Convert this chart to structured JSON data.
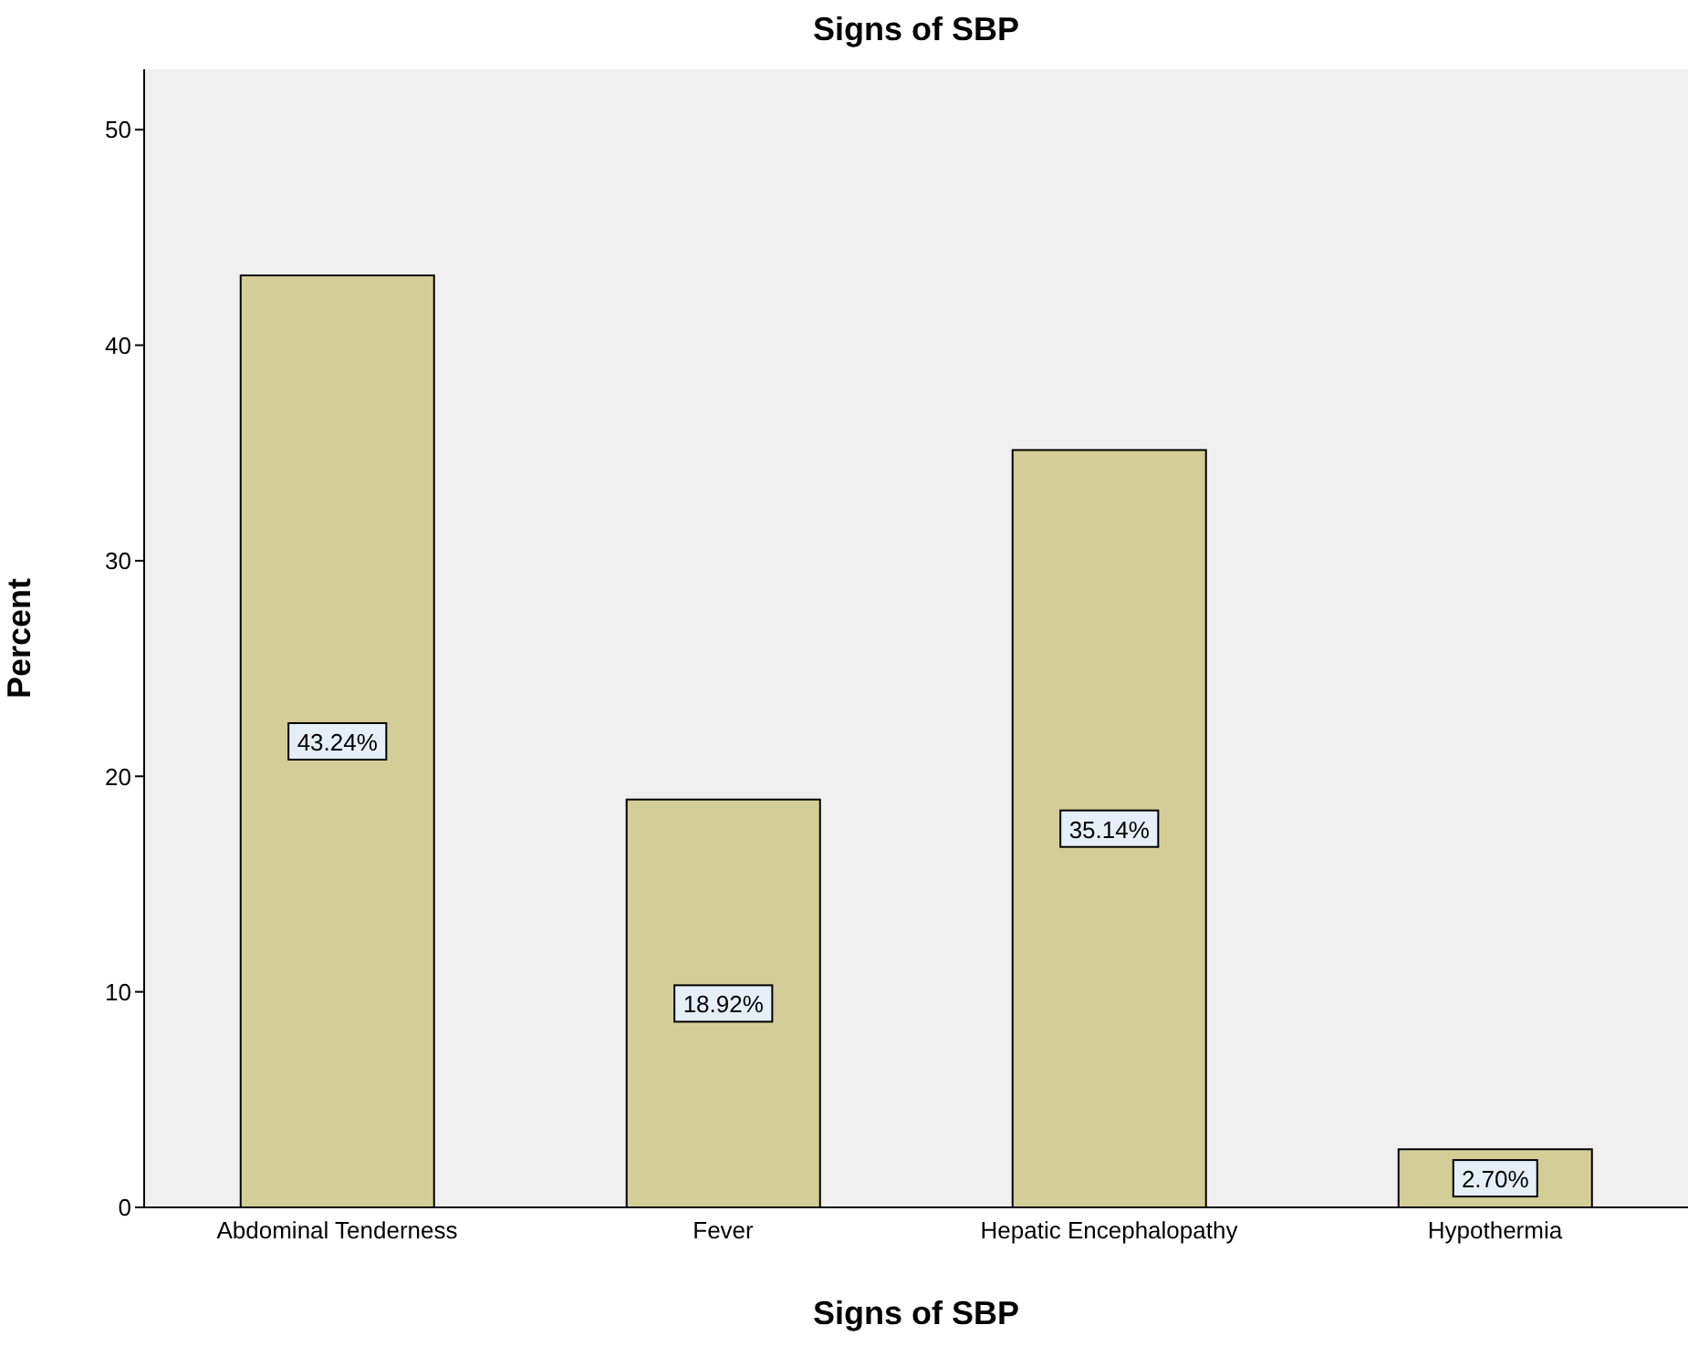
{
  "chart_data": {
    "type": "bar",
    "title": "Signs of SBP",
    "xlabel": "Signs of SBP",
    "ylabel": "Percent",
    "categories": [
      "Abdominal Tenderness",
      "Fever",
      "Hepatic Encephalopathy",
      "Hypothermia"
    ],
    "values": [
      43.24,
      18.92,
      35.14,
      2.7
    ],
    "value_labels": [
      "43.24%",
      "18.92%",
      "35.14%",
      "2.70%"
    ],
    "color": "#d3ce97",
    "ylim": [
      0,
      52.8
    ],
    "yticks": [
      0,
      10,
      20,
      30,
      40,
      50
    ],
    "grid": false
  }
}
